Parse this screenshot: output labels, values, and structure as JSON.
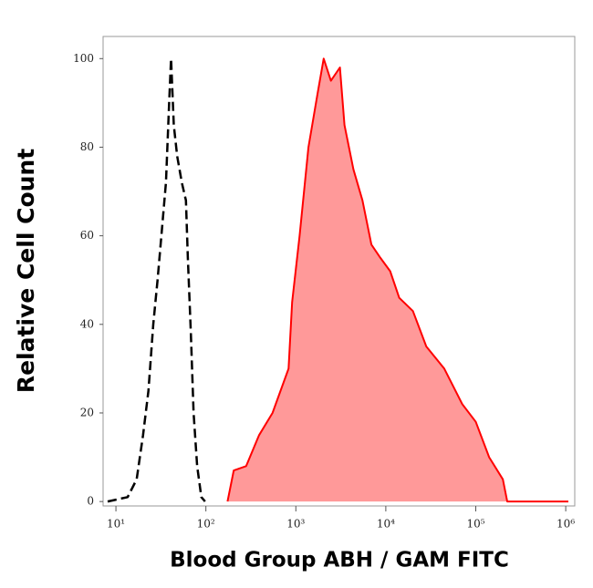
{
  "chart_data": {
    "type": "histogram-overlay",
    "xlabel": "Blood Group ABH / GAM FITC",
    "ylabel": "Relative Cell Count",
    "xscale": "log",
    "xlim": [
      7.2,
      1260000
    ],
    "ylim": [
      -1,
      105
    ],
    "xticks": [
      {
        "value": 10,
        "label": "10¹"
      },
      {
        "value": 100,
        "label": "10²"
      },
      {
        "value": 1000,
        "label": "10³"
      },
      {
        "value": 10000,
        "label": "10⁴"
      },
      {
        "value": 100000,
        "label": "10⁵"
      },
      {
        "value": 1000000,
        "label": "10⁶"
      }
    ],
    "yticks": [
      0,
      20,
      40,
      60,
      80,
      100
    ],
    "series": [
      {
        "color": "#000000",
        "line_style": "dashed",
        "filled": false,
        "x": [
          8.1,
          13.5,
          17,
          20,
          23,
          26,
          29,
          32,
          36,
          39,
          41,
          44,
          48,
          54,
          60,
          63,
          68,
          73,
          80,
          89,
          98
        ],
        "values": [
          0,
          1,
          5,
          15,
          25,
          40,
          50,
          60,
          72,
          90,
          100,
          85,
          78,
          72,
          68,
          55,
          38,
          20,
          8,
          1,
          0
        ]
      },
      {
        "color": "#ff0000",
        "fill_color": "#ff9999",
        "line_style": "solid",
        "filled": true,
        "x": [
          174,
          204,
          280,
          390,
          550,
          830,
          910,
          1100,
          1380,
          1740,
          2040,
          2450,
          3090,
          3470,
          4370,
          5500,
          6920,
          8710,
          11200,
          14100,
          20000,
          28200,
          44700,
          70800,
          100000,
          141000,
          200000,
          224000,
          1070000
        ],
        "values": [
          0,
          7,
          8,
          15,
          20,
          30,
          45,
          60,
          80,
          92,
          100,
          95,
          98,
          85,
          75,
          68,
          58,
          55,
          52,
          46,
          43,
          35,
          30,
          22,
          18,
          10,
          5,
          0,
          0
        ]
      }
    ]
  }
}
